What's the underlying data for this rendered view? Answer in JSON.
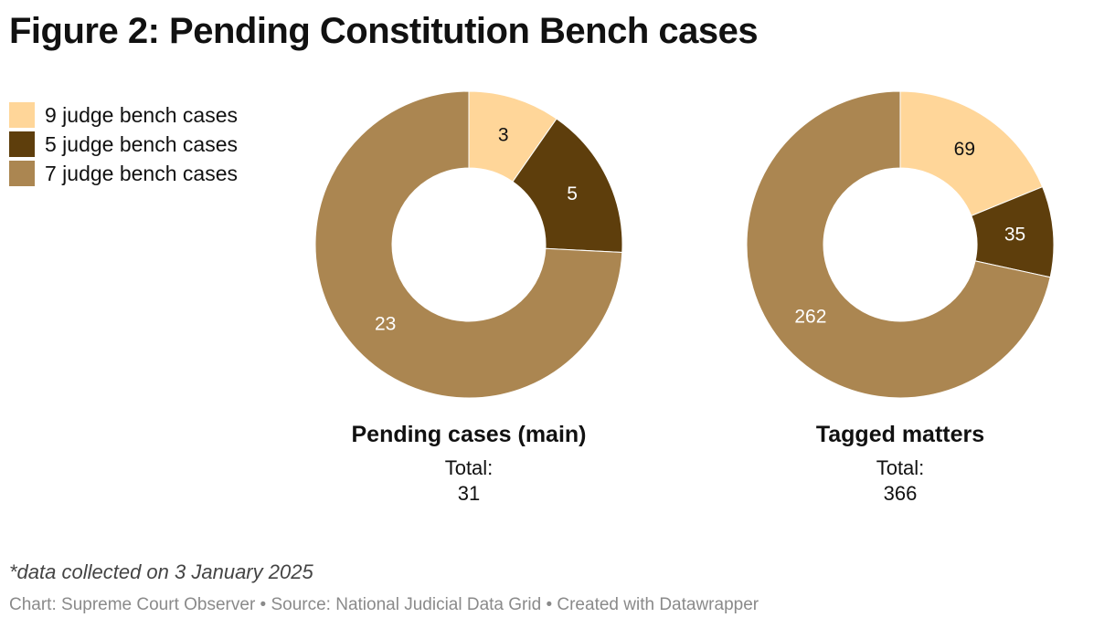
{
  "title": "Figure 2: Pending Constitution Bench cases",
  "legend": [
    {
      "label": "9 judge bench cases",
      "color": "#ffd699"
    },
    {
      "label": "5 judge bench cases",
      "color": "#5e3e0c"
    },
    {
      "label": "7 judge bench cases",
      "color": "#ab8651"
    }
  ],
  "chart_data": [
    {
      "type": "pie",
      "title": "Pending cases (main)",
      "total_label": "Total:",
      "total_value": "31",
      "categories": [
        "9 judge bench cases",
        "5 judge bench cases",
        "7 judge bench cases"
      ],
      "values": [
        3,
        5,
        23
      ],
      "colors": [
        "#ffd699",
        "#5e3e0c",
        "#ab8651"
      ]
    },
    {
      "type": "pie",
      "title": "Tagged matters",
      "total_label": "Total:",
      "total_value": "366",
      "categories": [
        "9 judge bench cases",
        "5 judge bench cases",
        "7 judge bench cases"
      ],
      "values": [
        69,
        35,
        262
      ],
      "colors": [
        "#ffd699",
        "#5e3e0c",
        "#ab8651"
      ]
    }
  ],
  "note": "*data collected on 3 January 2025",
  "footer": "Chart: Supreme Court Observer • Source: National Judicial Data Grid • Created with Datawrapper"
}
